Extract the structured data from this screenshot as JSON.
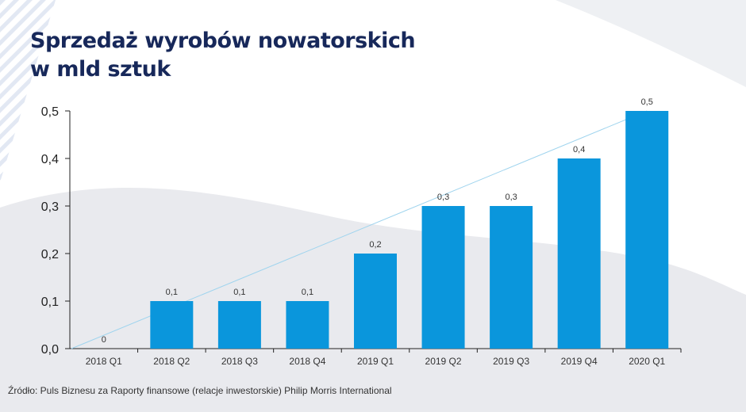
{
  "title_line1": "Sprzedaż wyrobów nowatorskich",
  "title_line2": "w mld sztuk",
  "source": "Źródło: Puls Biznesu za Raporty finansowe (relacje inwestorskie) Philip Morris International",
  "colors": {
    "bar": "#0a96dc",
    "title": "#17285a",
    "axis": "#222222",
    "trend": "#9fd4ee",
    "background_shape": "#e9eaee"
  },
  "chart_data": {
    "type": "bar",
    "title": "Sprzedaż wyrobów nowatorskich w mld sztuk",
    "xlabel": "",
    "ylabel": "",
    "categories": [
      "2018 Q1",
      "2018 Q2",
      "2018 Q3",
      "2018 Q4",
      "2019 Q1",
      "2019 Q2",
      "2019 Q3",
      "2019 Q4",
      "2020 Q1"
    ],
    "values": [
      0,
      0.1,
      0.1,
      0.1,
      0.2,
      0.3,
      0.3,
      0.4,
      0.5
    ],
    "value_labels": [
      "0",
      "0,1",
      "0,1",
      "0,1",
      "0,2",
      "0,3",
      "0,3",
      "0,4",
      "0,5"
    ],
    "y_ticks": [
      "0,0",
      "0,1",
      "0,2",
      "0,3",
      "0,4",
      "0,5"
    ],
    "ylim": [
      0,
      0.5
    ],
    "grid": false,
    "trendline": true
  }
}
